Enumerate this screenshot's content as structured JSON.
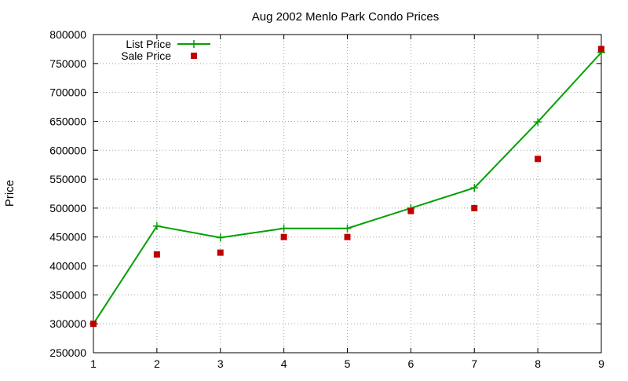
{
  "chart_data": {
    "type": "line",
    "title": "Aug 2002 Menlo Park Condo Prices",
    "xlabel": "",
    "ylabel": "Price",
    "xlim": [
      1,
      9
    ],
    "ylim": [
      250000,
      800000
    ],
    "x_ticks": [
      1,
      2,
      3,
      4,
      5,
      6,
      7,
      8,
      9
    ],
    "y_ticks": [
      250000,
      300000,
      350000,
      400000,
      450000,
      500000,
      550000,
      600000,
      650000,
      700000,
      750000,
      800000
    ],
    "grid": true,
    "legend_position": "top-left",
    "series": [
      {
        "name": "List Price",
        "style": "line-with-plus-markers",
        "color": "#00a000",
        "x": [
          1,
          2,
          3,
          4,
          5,
          6,
          7,
          8,
          9
        ],
        "y": [
          300000,
          469000,
          449000,
          465000,
          465000,
          500000,
          535000,
          649000,
          769000
        ]
      },
      {
        "name": "Sale Price",
        "style": "square-points",
        "color": "#c00000",
        "x": [
          1,
          2,
          3,
          4,
          5,
          6,
          7,
          8,
          9
        ],
        "y": [
          300000,
          420000,
          423000,
          450000,
          450000,
          495000,
          500000,
          585000,
          775000
        ]
      }
    ]
  }
}
